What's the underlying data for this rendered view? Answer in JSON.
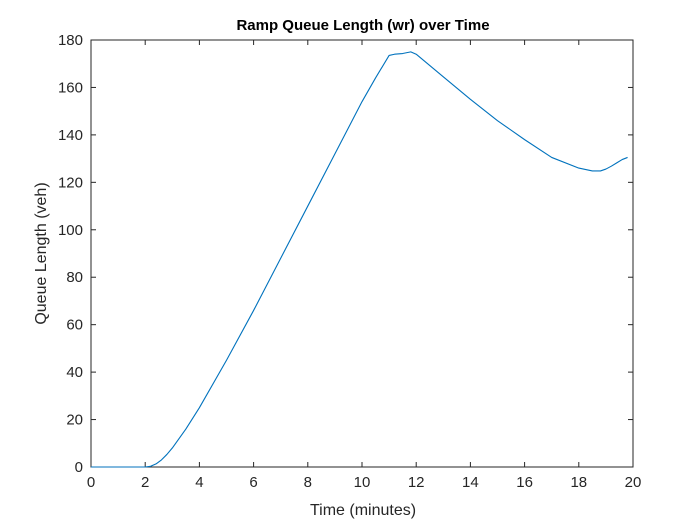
{
  "colors": {
    "background": "#ffffff",
    "axes": "#262626",
    "series": "#0072BD"
  },
  "chart_data": {
    "type": "line",
    "title": "Ramp Queue Length (wr) over Time",
    "xlabel": "Time (minutes)",
    "ylabel": "Queue Length (veh)",
    "xlim": [
      0,
      20
    ],
    "ylim": [
      0,
      180
    ],
    "x_ticks": [
      0,
      2,
      4,
      6,
      8,
      10,
      12,
      14,
      16,
      18,
      20
    ],
    "y_ticks": [
      0,
      20,
      40,
      60,
      80,
      100,
      120,
      140,
      160,
      180
    ],
    "x_tick_labels": [
      "0",
      "2",
      "4",
      "6",
      "8",
      "10",
      "12",
      "14",
      "16",
      "18",
      "20"
    ],
    "y_tick_labels": [
      "0",
      "20",
      "40",
      "60",
      "80",
      "100",
      "120",
      "140",
      "160",
      "180"
    ],
    "grid": false,
    "legend": "none",
    "series": [
      {
        "color": "#0072BD",
        "x": [
          0,
          1,
          2.0,
          2.2,
          2.4,
          2.6,
          2.8,
          3.0,
          3.5,
          4.0,
          5.0,
          6.0,
          7.0,
          8.0,
          9.0,
          10.0,
          10.5,
          11.0,
          11.2,
          11.5,
          11.8,
          12.0,
          13.0,
          14.0,
          15.0,
          16.0,
          17.0,
          18.0,
          18.5,
          18.8,
          19.0,
          19.2,
          19.4,
          19.6,
          19.8
        ],
        "y": [
          0,
          0,
          0,
          0.3,
          1.3,
          3,
          5.3,
          8,
          16,
          25,
          45,
          66,
          88,
          110,
          132,
          154,
          164,
          173.5,
          174,
          174.3,
          175,
          174,
          164.5,
          155,
          146,
          138,
          130.5,
          126,
          124.8,
          124.8,
          125.6,
          126.8,
          128.2,
          129.6,
          130.5
        ]
      }
    ]
  }
}
